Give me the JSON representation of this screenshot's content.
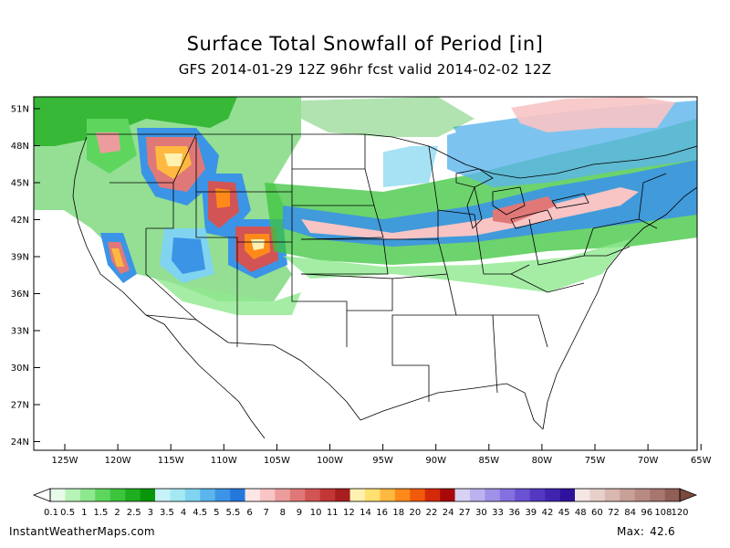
{
  "title": "Surface Total Snowfall of Period [in]",
  "subtitle": "GFS 2014-01-29 12Z 96hr fcst valid 2014-02-02 12Z",
  "lat_labels": [
    "51N",
    "48N",
    "45N",
    "42N",
    "39N",
    "36N",
    "33N",
    "30N",
    "27N",
    "24N"
  ],
  "lon_labels": [
    "125W",
    "120W",
    "115W",
    "110W",
    "105W",
    "100W",
    "95W",
    "90W",
    "85W",
    "80W",
    "75W",
    "70W",
    "65W"
  ],
  "colorbar": {
    "colors": [
      "#e8fbe8",
      "#b8f4b8",
      "#8ee88e",
      "#5ed65e",
      "#3cc43c",
      "#1fae1f",
      "#0a960a",
      "#c7f2f7",
      "#a4e8f2",
      "#80d4f0",
      "#5bb4ec",
      "#3c94e6",
      "#2478dc",
      "#ffe6e6",
      "#f8c4c4",
      "#ec9c9c",
      "#e07878",
      "#d25454",
      "#c23636",
      "#a81e1e",
      "#fff2b0",
      "#ffe070",
      "#ffb840",
      "#ff8a1a",
      "#f05a0a",
      "#d42a0a",
      "#a80808",
      "#d8d2f4",
      "#bcb2ee",
      "#a090e8",
      "#8470de",
      "#6a52d2",
      "#5438c2",
      "#4024b0",
      "#2e129c",
      "#f4e6e2",
      "#e8d0ca",
      "#d8b8b0",
      "#c8a098",
      "#b88a82",
      "#a8766e",
      "#905e56"
    ],
    "labels": [
      "0.1",
      "0.5",
      "1",
      "1.5",
      "2",
      "2.5",
      "3",
      "3.5",
      "4",
      "4.5",
      "5",
      "5.5",
      "6",
      "7",
      "8",
      "9",
      "10",
      "11",
      "12",
      "14",
      "16",
      "18",
      "20",
      "22",
      "24",
      "27",
      "30",
      "33",
      "36",
      "39",
      "42",
      "45",
      "48",
      "60",
      "72",
      "84",
      "96",
      "108",
      "120"
    ]
  },
  "footer": {
    "site": "InstantWeatherMaps.com",
    "max_label": "Max:",
    "max_value": "42.6"
  }
}
